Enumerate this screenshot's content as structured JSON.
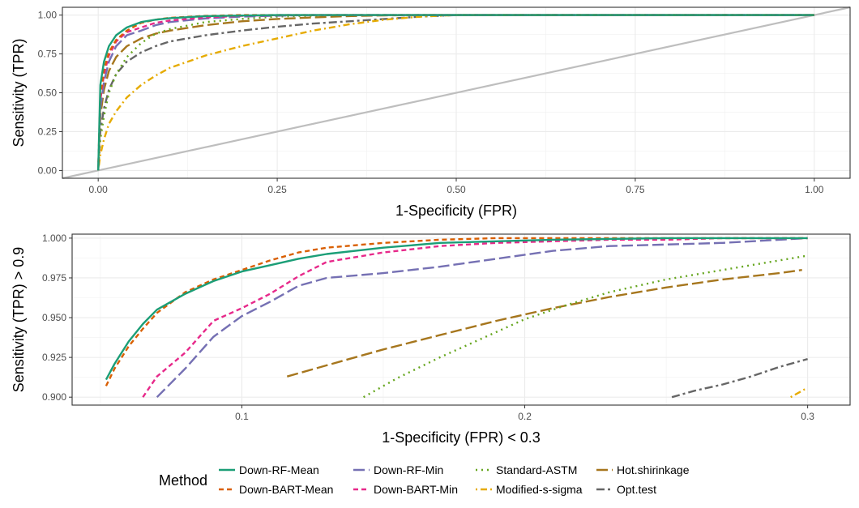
{
  "chart_data": [
    {
      "type": "line",
      "xlabel": "1-Specificity (FPR)",
      "ylabel": "Sensitivity (TPR)",
      "xlim": [
        -0.05,
        1.05
      ],
      "ylim": [
        -0.05,
        1.05
      ],
      "xticks": [
        0,
        0.25,
        0.5,
        0.75,
        1
      ],
      "yticks": [
        0,
        0.25,
        0.5,
        0.75,
        1
      ],
      "xtick_labels": [
        "0.00",
        "0.25",
        "0.50",
        "0.75",
        "1.00"
      ],
      "ytick_labels": [
        "0.00",
        "0.25",
        "0.50",
        "0.75",
        "1.00"
      ],
      "grid": true,
      "reference_line": {
        "x": [
          -0.05,
          1.05
        ],
        "y": [
          -0.05,
          1.05
        ],
        "color": "#bebebe"
      },
      "series": [
        {
          "name": "Opt.test",
          "x": [
            0,
            0.003,
            0.008,
            0.015,
            0.025,
            0.04,
            0.06,
            0.08,
            0.1,
            0.15,
            0.2,
            0.25,
            0.3,
            0.35,
            0.4,
            0.45,
            0.5,
            1.0
          ],
          "y": [
            0,
            0.25,
            0.4,
            0.52,
            0.62,
            0.7,
            0.76,
            0.8,
            0.83,
            0.87,
            0.9,
            0.925,
            0.945,
            0.96,
            0.975,
            0.99,
            1.0,
            1.0
          ]
        },
        {
          "name": "Modified-s-sigma",
          "x": [
            0,
            0.003,
            0.008,
            0.015,
            0.025,
            0.04,
            0.06,
            0.08,
            0.1,
            0.15,
            0.2,
            0.25,
            0.3,
            0.35,
            0.4,
            0.45,
            0.5,
            1.0
          ],
          "y": [
            0,
            0.1,
            0.2,
            0.3,
            0.38,
            0.47,
            0.55,
            0.61,
            0.66,
            0.74,
            0.8,
            0.85,
            0.9,
            0.94,
            0.97,
            0.99,
            1.0,
            1.0
          ]
        },
        {
          "name": "Hot.shirinkage",
          "x": [
            0,
            0.003,
            0.008,
            0.015,
            0.025,
            0.04,
            0.06,
            0.08,
            0.1,
            0.15,
            0.2,
            0.25,
            0.3,
            0.35,
            0.4,
            0.45,
            0.5,
            1.0
          ],
          "y": [
            0,
            0.35,
            0.52,
            0.64,
            0.73,
            0.8,
            0.85,
            0.88,
            0.9,
            0.935,
            0.96,
            0.975,
            0.985,
            0.993,
            0.998,
            1.0,
            1.0,
            1.0
          ]
        },
        {
          "name": "Standard-ASTM",
          "x": [
            0,
            0.003,
            0.008,
            0.015,
            0.025,
            0.04,
            0.06,
            0.08,
            0.1,
            0.15,
            0.2,
            0.25,
            0.3,
            0.35,
            0.4,
            0.45,
            1.0
          ],
          "y": [
            0,
            0.2,
            0.35,
            0.5,
            0.62,
            0.73,
            0.82,
            0.88,
            0.91,
            0.955,
            0.975,
            0.99,
            0.997,
            1.0,
            1.0,
            1.0,
            1.0
          ]
        },
        {
          "name": "Down-RF-Min",
          "x": [
            0,
            0.003,
            0.008,
            0.015,
            0.025,
            0.04,
            0.06,
            0.08,
            0.1,
            0.15,
            0.2,
            0.25,
            0.3,
            0.35,
            0.4,
            0.45,
            1.0
          ],
          "y": [
            0,
            0.4,
            0.57,
            0.7,
            0.8,
            0.87,
            0.9,
            0.935,
            0.955,
            0.978,
            0.99,
            0.996,
            1.0,
            1.0,
            1.0,
            1.0,
            1.0
          ]
        },
        {
          "name": "Down-BART-Min",
          "x": [
            0,
            0.003,
            0.008,
            0.015,
            0.025,
            0.04,
            0.06,
            0.08,
            0.1,
            0.15,
            0.2,
            0.25,
            0.3,
            0.35,
            0.4,
            0.45,
            1.0
          ],
          "y": [
            0,
            0.45,
            0.62,
            0.74,
            0.83,
            0.89,
            0.92,
            0.95,
            0.965,
            0.985,
            0.995,
            1.0,
            1.0,
            1.0,
            1.0,
            1.0,
            1.0
          ]
        },
        {
          "name": "Down-BART-Mean",
          "x": [
            0,
            0.003,
            0.008,
            0.015,
            0.025,
            0.04,
            0.06,
            0.08,
            0.1,
            0.15,
            0.2,
            0.25,
            0.3,
            0.35,
            0.4,
            0.45,
            1.0
          ],
          "y": [
            0,
            0.48,
            0.65,
            0.76,
            0.84,
            0.9,
            0.95,
            0.97,
            0.982,
            0.995,
            1.0,
            1.0,
            1.0,
            1.0,
            1.0,
            1.0,
            1.0
          ]
        },
        {
          "name": "Down-RF-Mean",
          "x": [
            0,
            0.003,
            0.008,
            0.015,
            0.025,
            0.04,
            0.06,
            0.08,
            0.1,
            0.15,
            0.2,
            0.25,
            0.3,
            0.35,
            0.4,
            0.45,
            1.0
          ],
          "y": [
            0,
            0.55,
            0.7,
            0.8,
            0.87,
            0.92,
            0.955,
            0.97,
            0.98,
            0.993,
            0.997,
            1.0,
            1.0,
            1.0,
            1.0,
            1.0,
            1.0
          ]
        }
      ]
    },
    {
      "type": "line",
      "xlabel": "1-Specificity (FPR) < 0.3",
      "ylabel": "Sensitivity (TPR) > 0.9",
      "xlim": [
        0.04,
        0.315
      ],
      "ylim": [
        0.895,
        1.0025
      ],
      "xticks": [
        0.1,
        0.2,
        0.3
      ],
      "yticks": [
        0.9,
        0.925,
        0.95,
        0.975,
        1.0
      ],
      "xtick_labels": [
        "0.1",
        "0.2",
        "0.3"
      ],
      "ytick_labels": [
        "0.900",
        "0.925",
        "0.950",
        "0.975",
        "1.000"
      ],
      "grid": true,
      "series": [
        {
          "name": "Opt.test",
          "x": [
            0.252,
            0.26,
            0.27,
            0.28,
            0.29,
            0.3
          ],
          "y": [
            0.9,
            0.904,
            0.908,
            0.913,
            0.919,
            0.924
          ]
        },
        {
          "name": "Modified-s-sigma",
          "x": [
            0.294,
            0.297,
            0.3
          ],
          "y": [
            0.9,
            0.903,
            0.906
          ]
        },
        {
          "name": "Hot.shirinkage",
          "x": [
            0.116,
            0.13,
            0.15,
            0.17,
            0.19,
            0.21,
            0.23,
            0.25,
            0.27,
            0.29,
            0.298
          ],
          "y": [
            0.913,
            0.92,
            0.93,
            0.939,
            0.948,
            0.956,
            0.963,
            0.969,
            0.974,
            0.978,
            0.98
          ]
        },
        {
          "name": "Standard-ASTM",
          "x": [
            0.143,
            0.155,
            0.17,
            0.185,
            0.2,
            0.215,
            0.23,
            0.25,
            0.27,
            0.29,
            0.3
          ],
          "y": [
            0.9,
            0.912,
            0.925,
            0.937,
            0.949,
            0.958,
            0.966,
            0.974,
            0.98,
            0.986,
            0.989
          ]
        },
        {
          "name": "Down-RF-Min",
          "x": [
            0.07,
            0.08,
            0.09,
            0.1,
            0.11,
            0.12,
            0.13,
            0.15,
            0.17,
            0.19,
            0.21,
            0.23,
            0.25,
            0.27,
            0.29,
            0.3
          ],
          "y": [
            0.9,
            0.918,
            0.938,
            0.951,
            0.96,
            0.97,
            0.975,
            0.978,
            0.982,
            0.987,
            0.992,
            0.995,
            0.996,
            0.997,
            0.999,
            1.0
          ]
        },
        {
          "name": "Down-BART-Min",
          "x": [
            0.065,
            0.07,
            0.08,
            0.09,
            0.1,
            0.11,
            0.12,
            0.13,
            0.15,
            0.17,
            0.19,
            0.21,
            0.23,
            0.25,
            0.27,
            0.3
          ],
          "y": [
            0.9,
            0.913,
            0.928,
            0.948,
            0.956,
            0.965,
            0.976,
            0.985,
            0.991,
            0.995,
            0.997,
            0.998,
            0.999,
            0.999,
            1.0,
            1.0
          ]
        },
        {
          "name": "Down-BART-Mean",
          "x": [
            0.052,
            0.055,
            0.06,
            0.065,
            0.07,
            0.08,
            0.09,
            0.1,
            0.11,
            0.12,
            0.13,
            0.15,
            0.17,
            0.19,
            0.21,
            0.25,
            0.3
          ],
          "y": [
            0.907,
            0.918,
            0.932,
            0.943,
            0.953,
            0.966,
            0.974,
            0.98,
            0.986,
            0.991,
            0.994,
            0.997,
            0.999,
            1.0,
            1.0,
            1.0,
            1.0
          ]
        },
        {
          "name": "Down-RF-Mean",
          "x": [
            0.052,
            0.055,
            0.06,
            0.065,
            0.07,
            0.08,
            0.09,
            0.1,
            0.11,
            0.12,
            0.13,
            0.15,
            0.17,
            0.19,
            0.21,
            0.25,
            0.3
          ],
          "y": [
            0.911,
            0.921,
            0.935,
            0.946,
            0.955,
            0.965,
            0.973,
            0.979,
            0.983,
            0.987,
            0.99,
            0.994,
            0.997,
            0.998,
            0.999,
            1.0,
            1.0
          ]
        }
      ]
    }
  ],
  "legend": {
    "title": "Method",
    "entries": [
      {
        "name": "Down-RF-Mean",
        "color": "#1b9e77",
        "dash": "solid"
      },
      {
        "name": "Down-BART-Mean",
        "color": "#d95f02",
        "dash": "dashed"
      },
      {
        "name": "Down-RF-Min",
        "color": "#7570b3",
        "dash": "longdash"
      },
      {
        "name": "Down-BART-Min",
        "color": "#e7298a",
        "dash": "dashed"
      },
      {
        "name": "Standard-ASTM",
        "color": "#66a61e",
        "dash": "dotted"
      },
      {
        "name": "Modified-s-sigma",
        "color": "#e6ab02",
        "dash": "dotdash"
      },
      {
        "name": "Hot.shirinkage",
        "color": "#a6761d",
        "dash": "longdash"
      },
      {
        "name": "Opt.test",
        "color": "#666666",
        "dash": "twodash"
      }
    ]
  }
}
